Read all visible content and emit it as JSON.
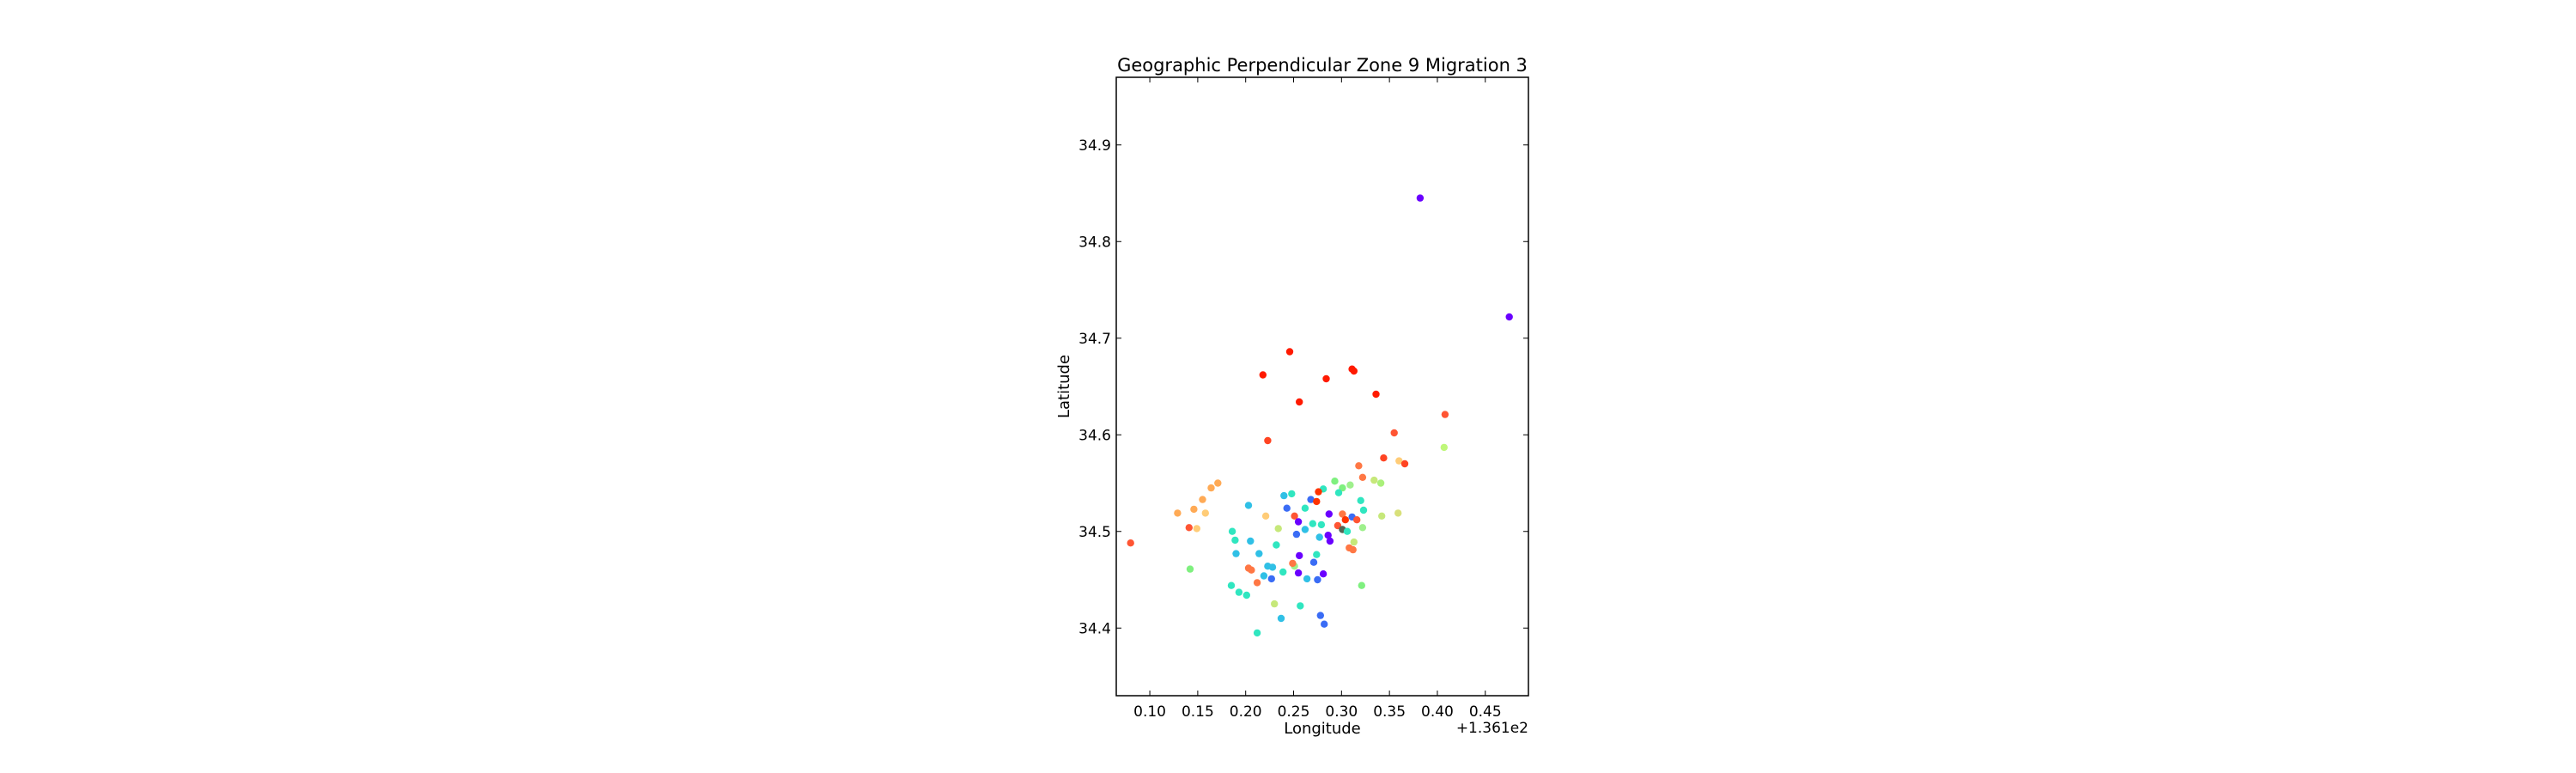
{
  "chart_data": {
    "type": "scatter",
    "title": "Geographic Perpendicular Zone 9 Migration 3",
    "xlabel": "Longitude",
    "ylabel": "Latitude",
    "x_offset_label": "+1.361e2",
    "xlim": [
      0.065,
      0.495
    ],
    "ylim": [
      34.33,
      34.97
    ],
    "x_ticks": [
      0.1,
      0.15,
      0.2,
      0.25,
      0.3,
      0.35,
      0.4,
      0.45
    ],
    "x_tick_labels": [
      "0.10",
      "0.15",
      "0.20",
      "0.25",
      "0.30",
      "0.35",
      "0.40",
      "0.45"
    ],
    "y_ticks": [
      34.4,
      34.5,
      34.6,
      34.7,
      34.8,
      34.9
    ],
    "y_tick_labels": [
      "34.4",
      "34.5",
      "34.6",
      "34.7",
      "34.8",
      "34.9"
    ],
    "grid": false,
    "colormap": "rainbow",
    "points": [
      {
        "x": 0.382,
        "y": 34.845,
        "color": "#6a00ff"
      },
      {
        "x": 0.475,
        "y": 34.722,
        "color": "#6a00ff"
      },
      {
        "x": 0.246,
        "y": 34.686,
        "color": "#ff1a00"
      },
      {
        "x": 0.311,
        "y": 34.668,
        "color": "#ff1a00"
      },
      {
        "x": 0.313,
        "y": 34.666,
        "color": "#ff1a00"
      },
      {
        "x": 0.218,
        "y": 34.662,
        "color": "#ff1a00"
      },
      {
        "x": 0.284,
        "y": 34.658,
        "color": "#ff1a00"
      },
      {
        "x": 0.336,
        "y": 34.642,
        "color": "#ff1a00"
      },
      {
        "x": 0.256,
        "y": 34.634,
        "color": "#ff1a00"
      },
      {
        "x": 0.408,
        "y": 34.621,
        "color": "#ff5533"
      },
      {
        "x": 0.355,
        "y": 34.602,
        "color": "#ff5533"
      },
      {
        "x": 0.223,
        "y": 34.594,
        "color": "#ff4422"
      },
      {
        "x": 0.407,
        "y": 34.587,
        "color": "#bff77a"
      },
      {
        "x": 0.344,
        "y": 34.576,
        "color": "#ff4422"
      },
      {
        "x": 0.36,
        "y": 34.573,
        "color": "#ffcc77"
      },
      {
        "x": 0.366,
        "y": 34.57,
        "color": "#ff4422"
      },
      {
        "x": 0.318,
        "y": 34.568,
        "color": "#ff7744"
      },
      {
        "x": 0.322,
        "y": 34.556,
        "color": "#ff7744"
      },
      {
        "x": 0.334,
        "y": 34.553,
        "color": "#c6e87a"
      },
      {
        "x": 0.341,
        "y": 34.55,
        "color": "#aaf07a"
      },
      {
        "x": 0.171,
        "y": 34.55,
        "color": "#ffaa55"
      },
      {
        "x": 0.164,
        "y": 34.545,
        "color": "#ffaa55"
      },
      {
        "x": 0.293,
        "y": 34.552,
        "color": "#7ff07f"
      },
      {
        "x": 0.281,
        "y": 34.544,
        "color": "#30e6c0"
      },
      {
        "x": 0.301,
        "y": 34.545,
        "color": "#7ff07f"
      },
      {
        "x": 0.309,
        "y": 34.548,
        "color": "#9ef08c"
      },
      {
        "x": 0.297,
        "y": 34.54,
        "color": "#30e6c0"
      },
      {
        "x": 0.276,
        "y": 34.541,
        "color": "#ff3300"
      },
      {
        "x": 0.24,
        "y": 34.537,
        "color": "#30c0e6"
      },
      {
        "x": 0.248,
        "y": 34.539,
        "color": "#30e6c0"
      },
      {
        "x": 0.155,
        "y": 34.533,
        "color": "#ffaa55"
      },
      {
        "x": 0.268,
        "y": 34.533,
        "color": "#3a6cf5"
      },
      {
        "x": 0.274,
        "y": 34.531,
        "color": "#ff3300"
      },
      {
        "x": 0.32,
        "y": 34.532,
        "color": "#30e6c0"
      },
      {
        "x": 0.146,
        "y": 34.523,
        "color": "#ffaa55"
      },
      {
        "x": 0.203,
        "y": 34.527,
        "color": "#30c0e6"
      },
      {
        "x": 0.243,
        "y": 34.524,
        "color": "#3a6cf5"
      },
      {
        "x": 0.262,
        "y": 34.524,
        "color": "#30e6c0"
      },
      {
        "x": 0.323,
        "y": 34.522,
        "color": "#30e6c0"
      },
      {
        "x": 0.359,
        "y": 34.519,
        "color": "#d8e07a"
      },
      {
        "x": 0.129,
        "y": 34.519,
        "color": "#ffaa55"
      },
      {
        "x": 0.158,
        "y": 34.519,
        "color": "#ffcc77"
      },
      {
        "x": 0.221,
        "y": 34.516,
        "color": "#ffcc77"
      },
      {
        "x": 0.251,
        "y": 34.516,
        "color": "#ff5533"
      },
      {
        "x": 0.287,
        "y": 34.518,
        "color": "#6a00ff"
      },
      {
        "x": 0.301,
        "y": 34.518,
        "color": "#ff7744"
      },
      {
        "x": 0.311,
        "y": 34.515,
        "color": "#3a6cf5"
      },
      {
        "x": 0.342,
        "y": 34.516,
        "color": "#c6e87a"
      },
      {
        "x": 0.316,
        "y": 34.512,
        "color": "#ff5533"
      },
      {
        "x": 0.304,
        "y": 34.512,
        "color": "#ff3300"
      },
      {
        "x": 0.255,
        "y": 34.51,
        "color": "#6a00ff"
      },
      {
        "x": 0.27,
        "y": 34.508,
        "color": "#30e6c0"
      },
      {
        "x": 0.279,
        "y": 34.507,
        "color": "#30e6c0"
      },
      {
        "x": 0.296,
        "y": 34.506,
        "color": "#ff5533"
      },
      {
        "x": 0.141,
        "y": 34.504,
        "color": "#ff5533"
      },
      {
        "x": 0.149,
        "y": 34.503,
        "color": "#ffcc77"
      },
      {
        "x": 0.234,
        "y": 34.503,
        "color": "#c6e87a"
      },
      {
        "x": 0.322,
        "y": 34.504,
        "color": "#9ef08c"
      },
      {
        "x": 0.262,
        "y": 34.502,
        "color": "#30c0e6"
      },
      {
        "x": 0.301,
        "y": 34.502,
        "color": "#556655"
      },
      {
        "x": 0.306,
        "y": 34.5,
        "color": "#30e6c0"
      },
      {
        "x": 0.186,
        "y": 34.5,
        "color": "#30e6c0"
      },
      {
        "x": 0.253,
        "y": 34.497,
        "color": "#3a6cf5"
      },
      {
        "x": 0.286,
        "y": 34.496,
        "color": "#6a00ff"
      },
      {
        "x": 0.277,
        "y": 34.494,
        "color": "#30c0e6"
      },
      {
        "x": 0.189,
        "y": 34.491,
        "color": "#30e6c0"
      },
      {
        "x": 0.205,
        "y": 34.49,
        "color": "#30c0e6"
      },
      {
        "x": 0.288,
        "y": 34.49,
        "color": "#6a00ff"
      },
      {
        "x": 0.313,
        "y": 34.489,
        "color": "#c6e87a"
      },
      {
        "x": 0.08,
        "y": 34.488,
        "color": "#ff5533"
      },
      {
        "x": 0.232,
        "y": 34.486,
        "color": "#30e6c0"
      },
      {
        "x": 0.308,
        "y": 34.483,
        "color": "#ff7744"
      },
      {
        "x": 0.312,
        "y": 34.481,
        "color": "#ff7744"
      },
      {
        "x": 0.214,
        "y": 34.477,
        "color": "#30c0e6"
      },
      {
        "x": 0.19,
        "y": 34.477,
        "color": "#30c0e6"
      },
      {
        "x": 0.256,
        "y": 34.475,
        "color": "#6a00ff"
      },
      {
        "x": 0.274,
        "y": 34.476,
        "color": "#30e6c0"
      },
      {
        "x": 0.271,
        "y": 34.468,
        "color": "#3a6cf5"
      },
      {
        "x": 0.223,
        "y": 34.464,
        "color": "#30c0e6"
      },
      {
        "x": 0.228,
        "y": 34.463,
        "color": "#30c0e6"
      },
      {
        "x": 0.251,
        "y": 34.464,
        "color": "#9ef08c"
      },
      {
        "x": 0.249,
        "y": 34.467,
        "color": "#ff7744"
      },
      {
        "x": 0.203,
        "y": 34.462,
        "color": "#ff7744"
      },
      {
        "x": 0.206,
        "y": 34.46,
        "color": "#ff7744"
      },
      {
        "x": 0.142,
        "y": 34.461,
        "color": "#7ff07f"
      },
      {
        "x": 0.239,
        "y": 34.458,
        "color": "#30e6c0"
      },
      {
        "x": 0.255,
        "y": 34.457,
        "color": "#6a00ff"
      },
      {
        "x": 0.281,
        "y": 34.456,
        "color": "#6a00ff"
      },
      {
        "x": 0.219,
        "y": 34.454,
        "color": "#30c0e6"
      },
      {
        "x": 0.227,
        "y": 34.451,
        "color": "#3a6cf5"
      },
      {
        "x": 0.275,
        "y": 34.45,
        "color": "#3a6cf5"
      },
      {
        "x": 0.264,
        "y": 34.451,
        "color": "#30c0e6"
      },
      {
        "x": 0.212,
        "y": 34.447,
        "color": "#ff7744"
      },
      {
        "x": 0.185,
        "y": 34.444,
        "color": "#30e6c0"
      },
      {
        "x": 0.321,
        "y": 34.444,
        "color": "#7ff07f"
      },
      {
        "x": 0.193,
        "y": 34.437,
        "color": "#30e6c0"
      },
      {
        "x": 0.201,
        "y": 34.434,
        "color": "#30e6c0"
      },
      {
        "x": 0.23,
        "y": 34.425,
        "color": "#c6e87a"
      },
      {
        "x": 0.257,
        "y": 34.423,
        "color": "#30e6c0"
      },
      {
        "x": 0.278,
        "y": 34.413,
        "color": "#3a6cf5"
      },
      {
        "x": 0.237,
        "y": 34.41,
        "color": "#30c0e6"
      },
      {
        "x": 0.282,
        "y": 34.404,
        "color": "#3a6cf5"
      },
      {
        "x": 0.212,
        "y": 34.395,
        "color": "#30e6c0"
      }
    ]
  }
}
